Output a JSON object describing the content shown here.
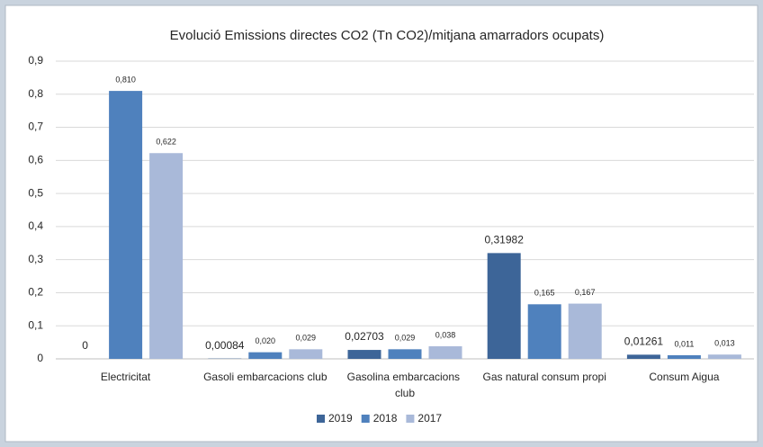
{
  "chart_data": {
    "type": "bar",
    "title": "Evolució Emissions directes CO2 (Tn CO2)/mitjana amarradors ocupats)",
    "categories": [
      "Electricitat",
      "Gasoli embarcacions club",
      "Gasolina embarcacions club",
      "Gas natural consum propi",
      "Consum Aigua"
    ],
    "series": [
      {
        "name": "2019",
        "color": "#3d6598",
        "values": [
          0,
          0.00084,
          0.02703,
          0.31982,
          0.01261
        ],
        "value_labels": [
          "0",
          "0,00084",
          "0,02703",
          "0,31982",
          "0,01261"
        ]
      },
      {
        "name": "2018",
        "color": "#4f81bd",
        "values": [
          0.81,
          0.02,
          0.029,
          0.165,
          0.011
        ],
        "value_labels": [
          "0,810",
          "0,020",
          "0,029",
          "0,165",
          "0,011"
        ]
      },
      {
        "name": "2017",
        "color": "#a9b9d9",
        "values": [
          0.622,
          0.029,
          0.038,
          0.167,
          0.013
        ],
        "value_labels": [
          "0,622",
          "0,029",
          "0,038",
          "0,167",
          "0,013"
        ]
      }
    ],
    "ylim": [
      0,
      0.9
    ],
    "yticks": [
      0,
      {
        "value": 0.1,
        "label": "0,1"
      },
      {
        "value": 0.2,
        "label": "0,2"
      },
      {
        "value": 0.3,
        "label": "0,3"
      },
      {
        "value": 0.4,
        "label": "0,4"
      },
      {
        "value": 0.5,
        "label": "0,5"
      },
      {
        "value": 0.6,
        "label": "0,6"
      },
      {
        "value": 0.7,
        "label": "0,7"
      },
      {
        "value": 0.8,
        "label": "0,8"
      },
      {
        "value": 0.9,
        "label": "0,9"
      }
    ],
    "grid": true,
    "legend": "bottom"
  }
}
